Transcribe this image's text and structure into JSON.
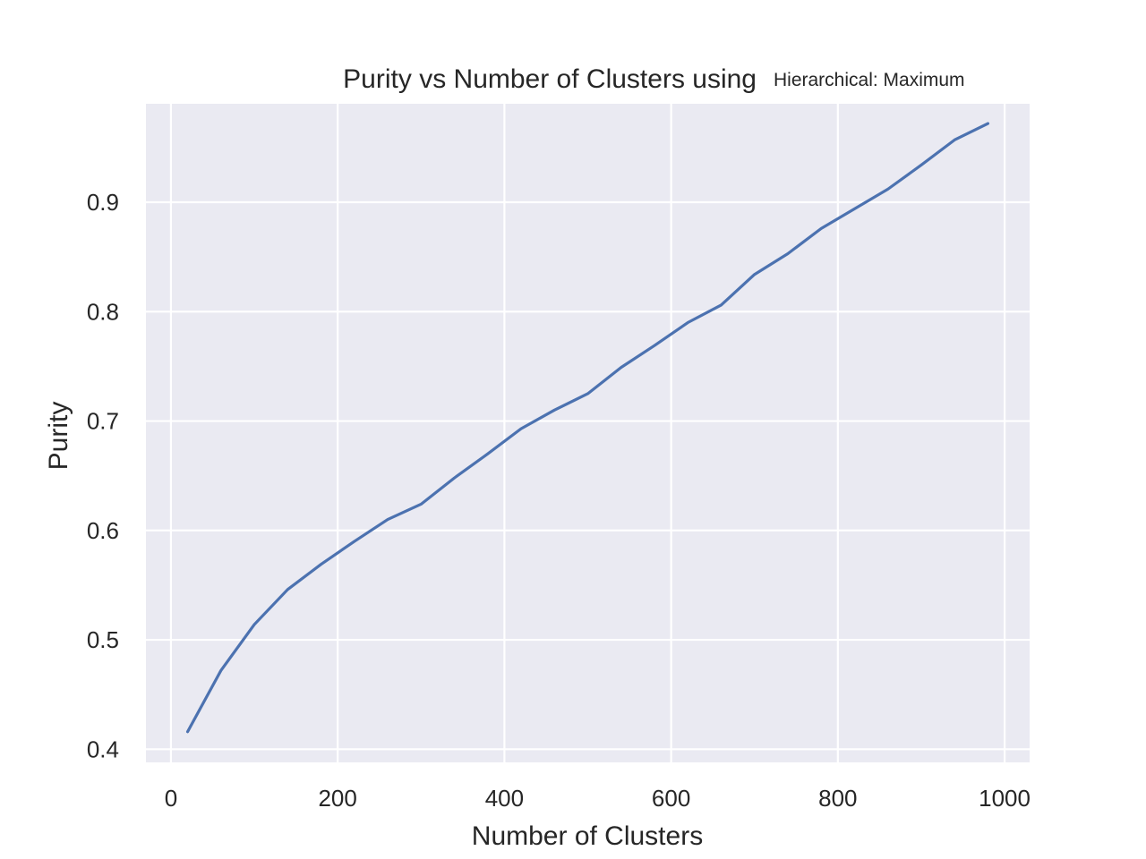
{
  "chart_data": {
    "type": "line",
    "title": "Purity vs Number of Clusters using",
    "subtitle": "Hierarchical: Maximum",
    "xlabel": "Number of Clusters",
    "ylabel": "Purity",
    "xlim": [
      -30,
      1030
    ],
    "ylim": [
      0.388,
      0.99
    ],
    "xticks": [
      0,
      200,
      400,
      600,
      800,
      1000
    ],
    "xtick_labels": [
      "0",
      "200",
      "400",
      "600",
      "800",
      "1000"
    ],
    "yticks": [
      0.4,
      0.5,
      0.6,
      0.7,
      0.8,
      0.9
    ],
    "ytick_labels": [
      "0.4",
      "0.5",
      "0.6",
      "0.7",
      "0.8",
      "0.9"
    ],
    "grid": true,
    "colors": {
      "background": "#eaeaf2",
      "grid": "#ffffff",
      "line": "#4c72b0",
      "text": "#262626"
    },
    "series": [
      {
        "x": [
          20,
          60,
          100,
          140,
          180,
          220,
          260,
          300,
          340,
          380,
          420,
          460,
          500,
          540,
          580,
          620,
          660,
          700,
          740,
          780,
          820,
          860,
          900,
          940,
          980
        ],
        "values": [
          0.416,
          0.472,
          0.514,
          0.546,
          0.569,
          0.59,
          0.61,
          0.624,
          0.648,
          0.67,
          0.693,
          0.71,
          0.725,
          0.749,
          0.769,
          0.79,
          0.806,
          0.834,
          0.853,
          0.876,
          0.894,
          0.912,
          0.934,
          0.957,
          0.972
        ]
      }
    ]
  }
}
